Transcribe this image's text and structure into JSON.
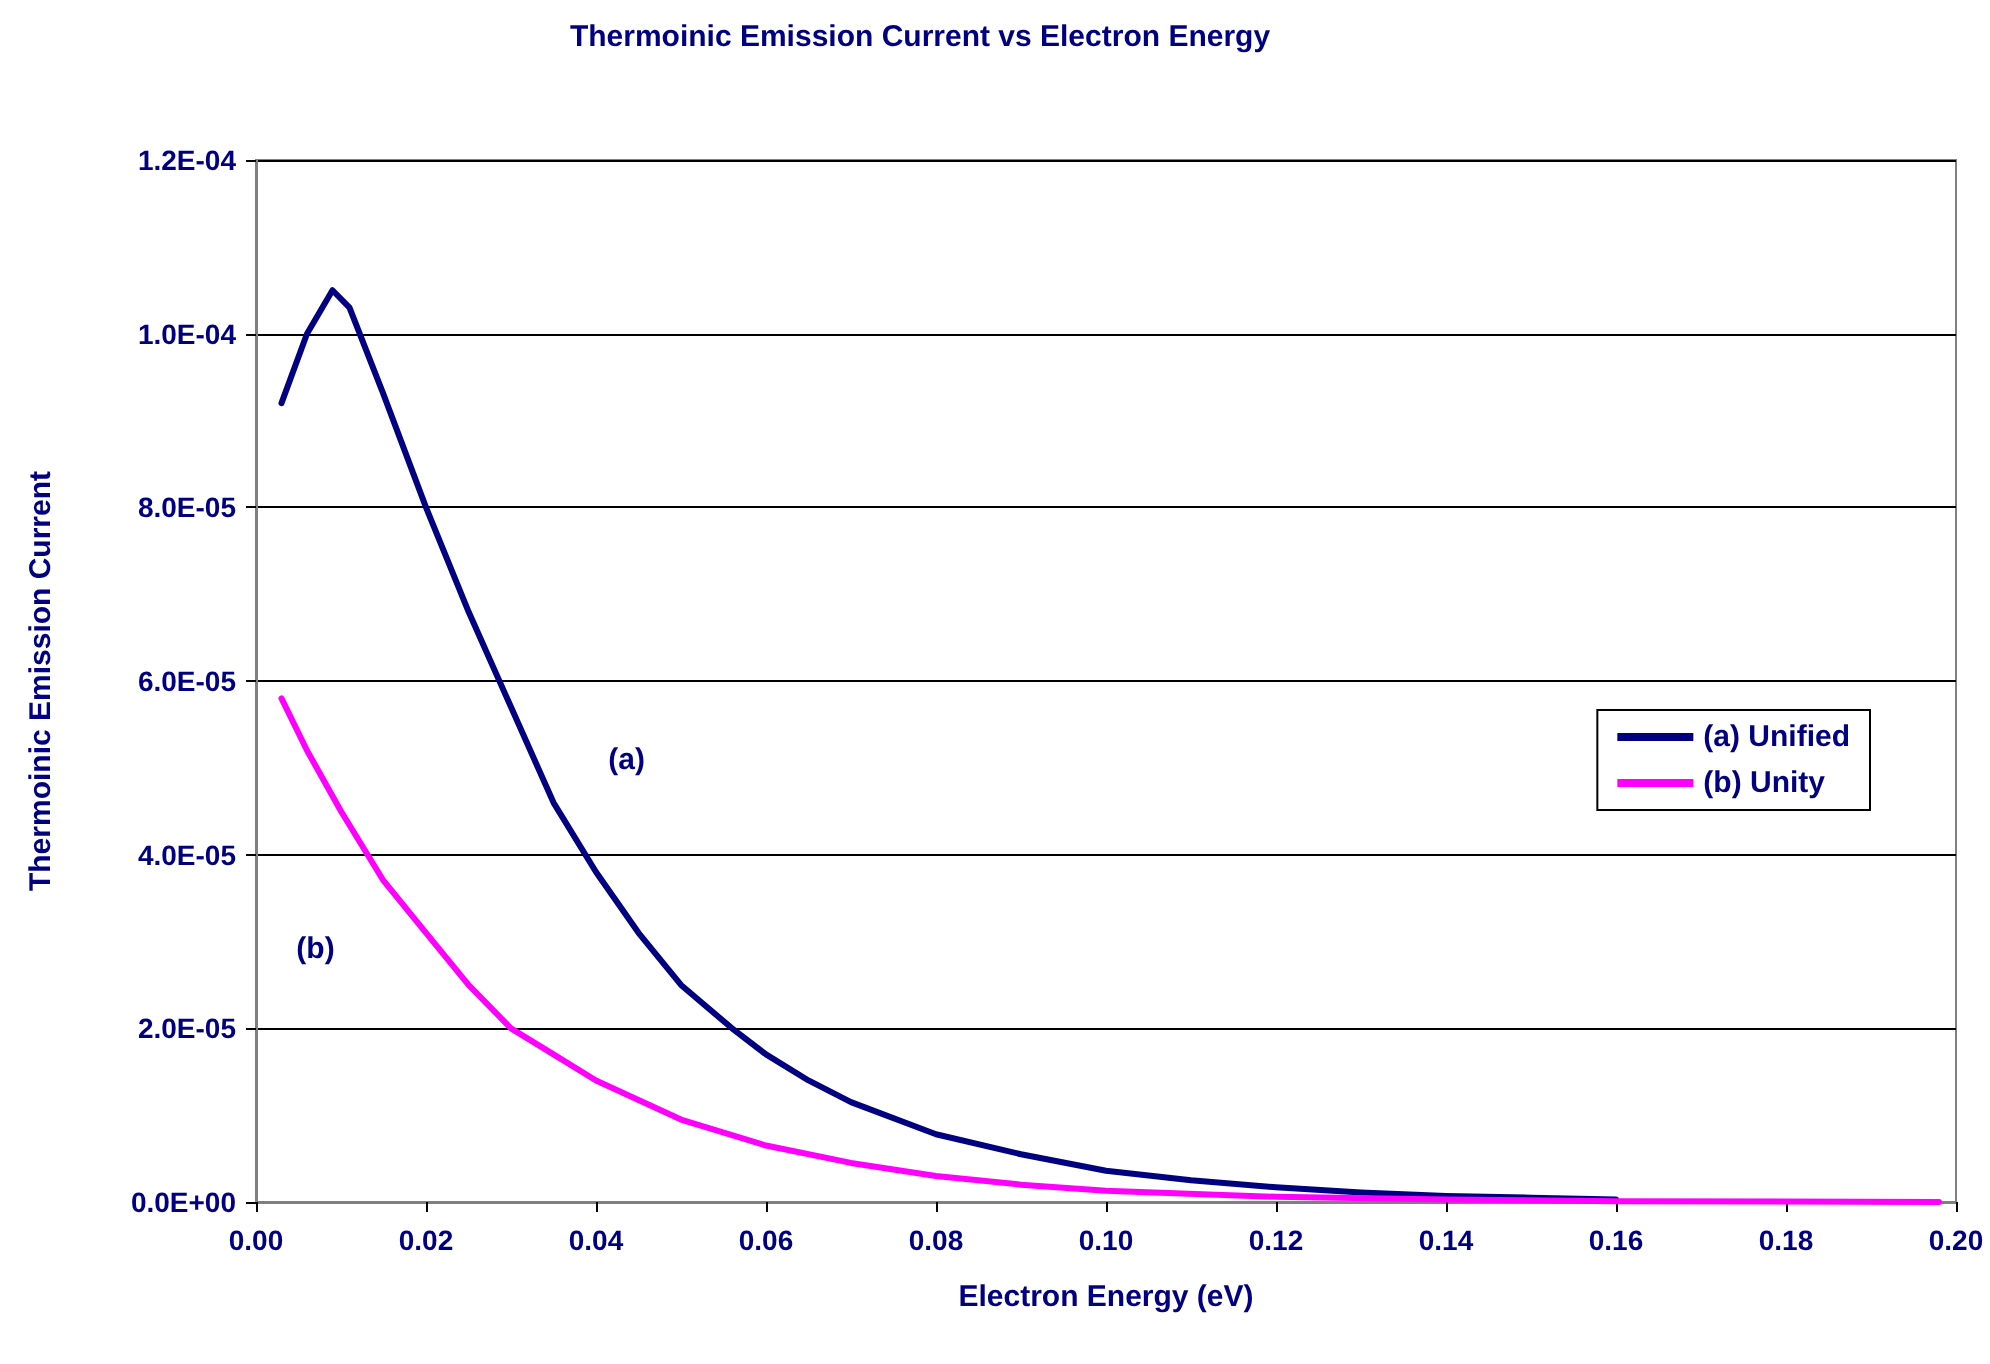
{
  "chart_data": {
    "type": "line",
    "title": "Thermoinic Emission Current vs Electron Energy",
    "xlabel": "Electron Energy (eV)",
    "ylabel": "Thermoinic Emission Current",
    "xlim": [
      0,
      0.2
    ],
    "xticks": [
      {
        "value": 0,
        "label": "0.00"
      },
      {
        "value": 0.02,
        "label": "0.02"
      },
      {
        "value": 0.04,
        "label": "0.04"
      },
      {
        "value": 0.06,
        "label": "0.06"
      },
      {
        "value": 0.08,
        "label": "0.08"
      },
      {
        "value": 0.1,
        "label": "0.10"
      },
      {
        "value": 0.12,
        "label": "0.12"
      },
      {
        "value": 0.14,
        "label": "0.14"
      },
      {
        "value": 0.16,
        "label": "0.16"
      },
      {
        "value": 0.18,
        "label": "0.18"
      },
      {
        "value": 0.2,
        "label": "0.20"
      }
    ],
    "ylim": [
      0,
      0.00012
    ],
    "yticks": [
      {
        "value": 0,
        "label": "0.0E+00"
      },
      {
        "value": 2e-05,
        "label": "2.0E-05"
      },
      {
        "value": 4e-05,
        "label": "4.0E-05"
      },
      {
        "value": 6e-05,
        "label": "6.0E-05"
      },
      {
        "value": 8e-05,
        "label": "8.0E-05"
      },
      {
        "value": 0.0001,
        "label": "1.0E-04"
      },
      {
        "value": 0.00012,
        "label": "1.2E-04"
      }
    ],
    "grid": "y",
    "legend": "right",
    "line_style": "solid",
    "annotations": [
      "(a)",
      "(b)"
    ],
    "series": [
      {
        "name": "(a) Unified",
        "color": "#000080",
        "x": [
          0.003,
          0.006,
          0.009,
          0.011,
          0.015,
          0.02,
          0.025,
          0.03,
          0.035,
          0.04,
          0.045,
          0.05,
          0.056,
          0.06,
          0.065,
          0.07,
          0.08,
          0.09,
          0.1,
          0.11,
          0.12,
          0.13,
          0.14,
          0.15,
          0.16
        ],
        "values": [
          9.2e-05,
          0.0001,
          0.000105,
          0.000103,
          9.3e-05,
          8e-05,
          6.8e-05,
          5.7e-05,
          4.6e-05,
          3.8e-05,
          3.1e-05,
          2.5e-05,
          2e-05,
          1.7e-05,
          1.4e-05,
          1.15e-05,
          7.8e-06,
          5.5e-06,
          3.6e-06,
          2.5e-06,
          1.7e-06,
          1.1e-06,
          7e-07,
          5e-07,
          3e-07
        ]
      },
      {
        "name": "(b) Unity",
        "color": "#ff00ff",
        "x": [
          0.003,
          0.006,
          0.01,
          0.015,
          0.02,
          0.025,
          0.03,
          0.035,
          0.04,
          0.05,
          0.06,
          0.07,
          0.08,
          0.09,
          0.1,
          0.12,
          0.14,
          0.16,
          0.198
        ],
        "values": [
          5.8e-05,
          5.2e-05,
          4.5e-05,
          3.7e-05,
          3.1e-05,
          2.5e-05,
          2e-05,
          1.7e-05,
          1.4e-05,
          9.5e-06,
          6.5e-06,
          4.5e-06,
          3e-06,
          2e-06,
          1.3e-06,
          6e-07,
          3e-07,
          1e-07,
          0
        ]
      }
    ]
  }
}
